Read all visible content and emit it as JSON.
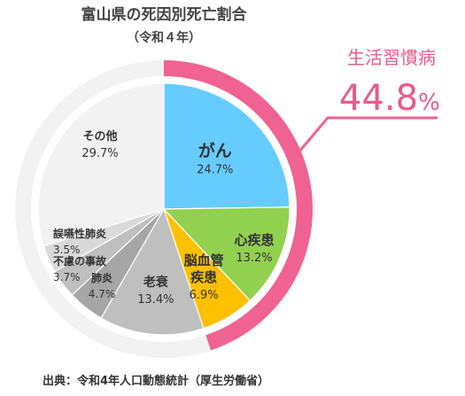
{
  "chart_data": {
    "type": "pie",
    "title": "富山県の死因別死亡割合",
    "subtitle": "（令和４年）",
    "slices": [
      {
        "label_lines": [
          "がん"
        ],
        "value": 24.7,
        "value_text": "24.7%",
        "color": "#66ccff",
        "lifestyle": true
      },
      {
        "label_lines": [
          "心疾患"
        ],
        "value": 13.2,
        "value_text": "13.2%",
        "color": "#92d050",
        "lifestyle": true
      },
      {
        "label_lines": [
          "脳血管",
          "疾患"
        ],
        "value": 6.9,
        "value_text": "6.9%",
        "color": "#ffc000",
        "lifestyle": true
      },
      {
        "label_lines": [
          "老衰"
        ],
        "value": 13.4,
        "value_text": "13.4%",
        "color": "#bfbfbf",
        "lifestyle": false
      },
      {
        "label_lines": [
          "肺炎"
        ],
        "value": 4.7,
        "value_text": "4.7%",
        "color": "#a6a6a6",
        "lifestyle": false
      },
      {
        "label_lines": [
          "不慮の事故"
        ],
        "value": 3.7,
        "value_text": "3.7%",
        "color": "#bfbfbf",
        "lifestyle": false
      },
      {
        "label_lines": [
          "誤嚥性肺炎"
        ],
        "value": 3.5,
        "value_text": "3.5%",
        "color": "#d9d9d9",
        "lifestyle": false
      },
      {
        "label_lines": [
          "その他"
        ],
        "value": 29.7,
        "value_text": "29.7%",
        "color": "#f2f2f2",
        "lifestyle": false
      }
    ],
    "lifestyle_group": {
      "label": "生活習慣病",
      "value": 44.8,
      "value_text": "44.8",
      "unit": "%",
      "ring_color": "#f06292",
      "ring_base_color": "#f2f2f2"
    },
    "source": "出典：令和4年人口動態統計（厚生労働省）"
  }
}
